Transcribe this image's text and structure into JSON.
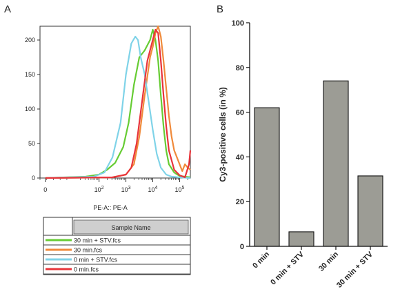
{
  "panel_labels": [
    "A",
    "B"
  ],
  "chart_data": [
    {
      "type": "line",
      "panel": "A",
      "xlabel": "PE-A:: PE-A",
      "ylabel": "",
      "x_scale": "logicle",
      "x_ticks": [
        "0",
        "10^2",
        "10^3",
        "10^4",
        "10^5"
      ],
      "ylim": [
        0,
        220
      ],
      "y_ticks": [
        0,
        50,
        100,
        150,
        200
      ],
      "legend": {
        "header": "Sample Name",
        "placement": "below",
        "entries": [
          {
            "name": "30 min + STV.fcs",
            "color": "#66cc33"
          },
          {
            "name": "30 min.fcs",
            "color": "#f08a3a"
          },
          {
            "name": "0 min + STV.fcs",
            "color": "#7fd3e8"
          },
          {
            "name": "0 min.fcs",
            "color": "#e8343a"
          }
        ]
      },
      "series": [
        {
          "name": "30 min + STV.fcs",
          "color": "#66cc33",
          "x": [
            0.0,
            1.5,
            2.0,
            2.3,
            2.6,
            2.9,
            3.1,
            3.3,
            3.5,
            3.7,
            3.9,
            4.0,
            4.1,
            4.2,
            4.3,
            4.4,
            4.5,
            4.6,
            4.8,
            5.0,
            5.4
          ],
          "y": [
            0,
            2,
            5,
            12,
            22,
            45,
            80,
            135,
            175,
            185,
            200,
            215,
            200,
            170,
            120,
            75,
            40,
            20,
            8,
            3,
            1
          ]
        },
        {
          "name": "30 min.fcs",
          "color": "#f08a3a",
          "x": [
            0.0,
            2.5,
            3.0,
            3.3,
            3.5,
            3.7,
            3.9,
            4.0,
            4.1,
            4.2,
            4.3,
            4.4,
            4.5,
            4.6,
            4.7,
            4.8,
            5.0,
            5.1,
            5.2,
            5.3,
            5.4
          ],
          "y": [
            0,
            1,
            5,
            20,
            60,
            120,
            175,
            190,
            210,
            220,
            205,
            170,
            130,
            90,
            60,
            40,
            20,
            10,
            20,
            15,
            12
          ]
        },
        {
          "name": "0 min + STV.fcs",
          "color": "#7fd3e8",
          "x": [
            0.0,
            1.8,
            2.2,
            2.5,
            2.8,
            3.0,
            3.2,
            3.35,
            3.45,
            3.55,
            3.7,
            3.85,
            4.0,
            4.15,
            4.3,
            4.5,
            4.7,
            5.0,
            5.4
          ],
          "y": [
            0,
            2,
            8,
            30,
            80,
            150,
            195,
            205,
            200,
            175,
            150,
            110,
            70,
            35,
            15,
            5,
            2,
            1,
            0
          ]
        },
        {
          "name": "0 min.fcs",
          "color": "#e8343a",
          "x": [
            0.0,
            2.5,
            3.0,
            3.2,
            3.4,
            3.6,
            3.8,
            3.9,
            4.0,
            4.1,
            4.2,
            4.3,
            4.4,
            4.5,
            4.6,
            4.8,
            5.0,
            5.2,
            5.35,
            5.4
          ],
          "y": [
            0,
            1,
            5,
            15,
            50,
            110,
            170,
            185,
            200,
            215,
            210,
            170,
            120,
            75,
            40,
            12,
            4,
            1,
            20,
            40
          ]
        }
      ]
    },
    {
      "type": "bar",
      "panel": "B",
      "ylabel": "Cy3-positive cells (in %)",
      "ylim": [
        0,
        100
      ],
      "y_ticks": [
        0,
        20,
        40,
        60,
        80,
        100
      ],
      "categories": [
        "0 min",
        "0 min + STV",
        "30 min",
        "30 min + STV"
      ],
      "values": [
        62,
        6.5,
        74,
        31.5
      ],
      "bar_color": "#9c9c95"
    }
  ]
}
